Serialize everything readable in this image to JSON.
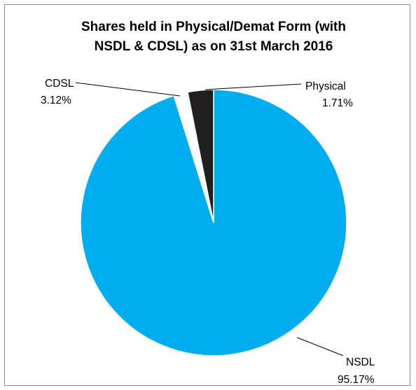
{
  "chart_data": {
    "type": "pie",
    "title_lines": [
      "Shares held in Physical/Demat Form (with",
      "NSDL & CDSL) as on 31st March 2016"
    ],
    "slices": [
      {
        "name": "NSDL",
        "value_label": "95.17%",
        "value": 95.17,
        "color": "#00aeef"
      },
      {
        "name": "Physical",
        "value_label": "1.71%",
        "value": 1.71,
        "color": "#ffffff"
      },
      {
        "name": "CDSL",
        "value_label": "3.12%",
        "value": 3.12,
        "color": "#231f20"
      }
    ]
  }
}
